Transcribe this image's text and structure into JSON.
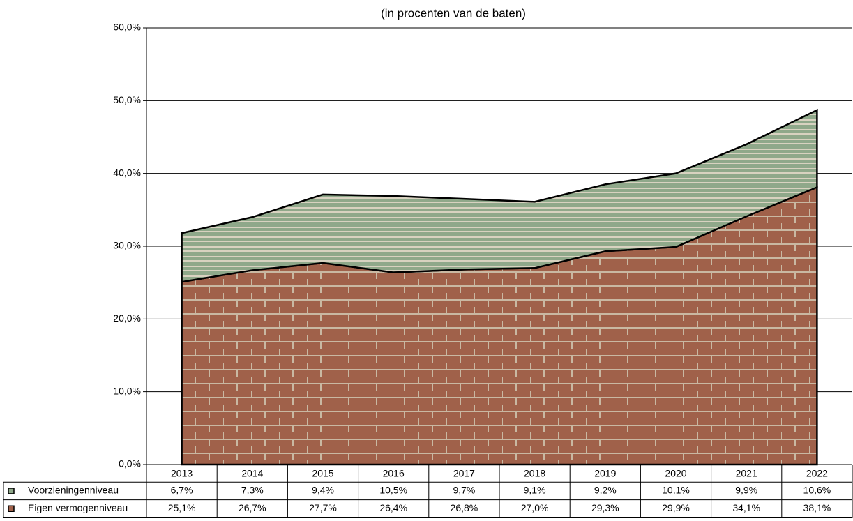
{
  "chart_data": {
    "type": "stacked-area",
    "title": "(in procenten van de baten)",
    "categories": [
      "2013",
      "2014",
      "2015",
      "2016",
      "2017",
      "2018",
      "2019",
      "2020",
      "2021",
      "2022"
    ],
    "series": [
      {
        "name": "Voorzieningenniveau",
        "color": "#8fa88a",
        "values": [
          6.7,
          7.3,
          9.4,
          10.5,
          9.7,
          9.1,
          9.2,
          10.1,
          9.9,
          10.6
        ],
        "value_labels": [
          "6,7%",
          "7,3%",
          "9,4%",
          "10,5%",
          "9,7%",
          "9,1%",
          "9,2%",
          "10,1%",
          "9,9%",
          "10,6%"
        ]
      },
      {
        "name": "Eigen vermogenniveau",
        "color": "#a0614a",
        "values": [
          25.1,
          26.7,
          27.7,
          26.4,
          26.8,
          27.0,
          29.3,
          29.9,
          34.1,
          38.1
        ],
        "value_labels": [
          "25,1%",
          "26,7%",
          "27,7%",
          "26,4%",
          "26,8%",
          "27,0%",
          "29,3%",
          "29,9%",
          "34,1%",
          "38,1%"
        ]
      }
    ],
    "ylim": [
      0,
      60
    ],
    "yticks": [
      {
        "value": 0,
        "label": "0,0%"
      },
      {
        "value": 10,
        "label": "10,0%"
      },
      {
        "value": 20,
        "label": "20,0%"
      },
      {
        "value": 30,
        "label": "30,0%"
      },
      {
        "value": 40,
        "label": "40,0%"
      },
      {
        "value": 50,
        "label": "50,0%"
      },
      {
        "value": 60,
        "label": "60,0%"
      }
    ],
    "grid": true
  }
}
